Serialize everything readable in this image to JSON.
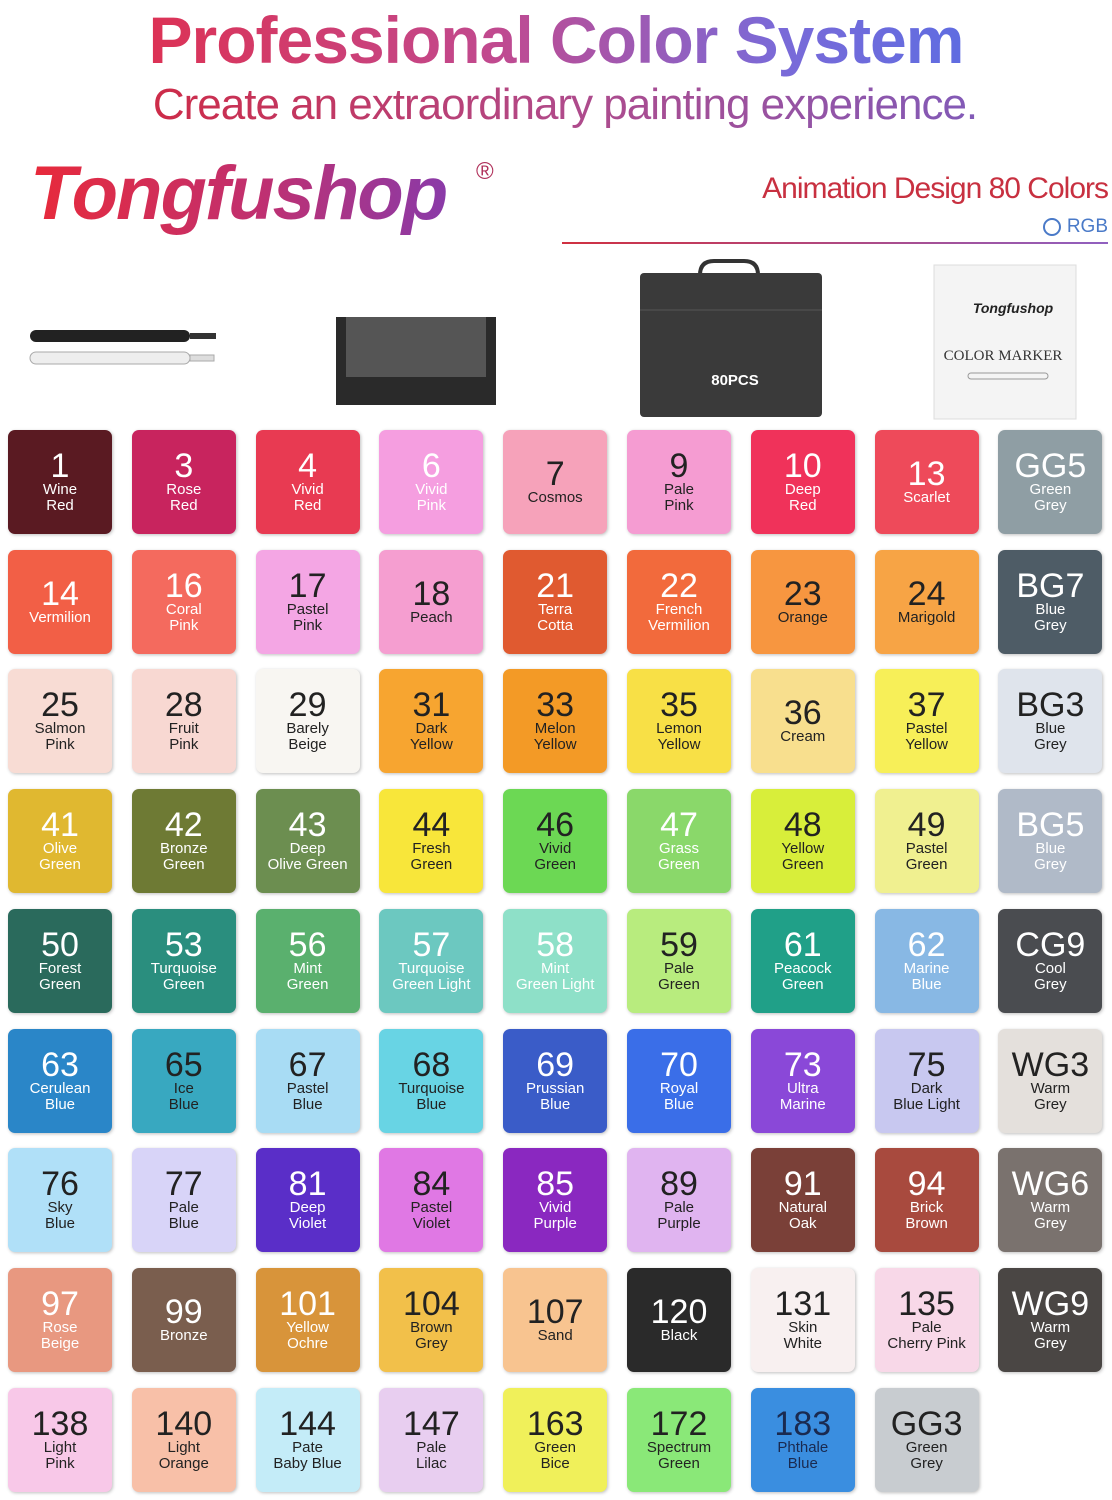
{
  "header": {
    "title": "Professional Color System",
    "subtitle": "Create an extraordinary painting experience.",
    "brand": "Tongfushop",
    "registered": "®",
    "edition": "Animation Design 80 Colors",
    "mode": "RGB"
  },
  "products": {
    "bag_label": "80PCS",
    "box_brand": "Tongfushop",
    "box_label": "COLOR MARKER"
  },
  "swatches": [
    {
      "code": "1",
      "name": [
        "Wine",
        "Red"
      ],
      "color": "#5a1a22",
      "text": "#ffffff"
    },
    {
      "code": "3",
      "name": [
        "Rose",
        "Red"
      ],
      "color": "#c8245e",
      "text": "#ffffff"
    },
    {
      "code": "4",
      "name": [
        "Vivid",
        "Red"
      ],
      "color": "#e83a52",
      "text": "#ffffff"
    },
    {
      "code": "6",
      "name": [
        "Vivid",
        "Pink"
      ],
      "color": "#f59ee0",
      "text": "#ffffff"
    },
    {
      "code": "7",
      "name": [
        "Cosmos"
      ],
      "color": "#f6a2ba",
      "text": "#222222"
    },
    {
      "code": "9",
      "name": [
        "Pale",
        "Pink"
      ],
      "color": "#f59cd2",
      "text": "#222222"
    },
    {
      "code": "10",
      "name": [
        "Deep",
        "Red"
      ],
      "color": "#f0325a",
      "text": "#ffffff"
    },
    {
      "code": "13",
      "name": [
        "Scarlet"
      ],
      "color": "#ee4a5a",
      "text": "#ffffff"
    },
    {
      "code": "GG5",
      "name": [
        "Green",
        "Grey"
      ],
      "color": "#8f9ea4",
      "text": "#ffffff"
    },
    {
      "code": "14",
      "name": [
        "Vermilion"
      ],
      "color": "#f25f46",
      "text": "#ffffff"
    },
    {
      "code": "16",
      "name": [
        "Coral",
        "Pink"
      ],
      "color": "#f46a5e",
      "text": "#ffffff"
    },
    {
      "code": "17",
      "name": [
        "Pastel",
        "Pink"
      ],
      "color": "#f4a6e4",
      "text": "#222222"
    },
    {
      "code": "18",
      "name": [
        "Peach"
      ],
      "color": "#f59ed0",
      "text": "#222222"
    },
    {
      "code": "21",
      "name": [
        "Terra",
        "Cotta"
      ],
      "color": "#e05a30",
      "text": "#ffffff"
    },
    {
      "code": "22",
      "name": [
        "French",
        "Vermilion"
      ],
      "color": "#f26a3c",
      "text": "#ffffff"
    },
    {
      "code": "23",
      "name": [
        "Orange"
      ],
      "color": "#f79640",
      "text": "#222222"
    },
    {
      "code": "24",
      "name": [
        "Marigold"
      ],
      "color": "#f7a445",
      "text": "#222222"
    },
    {
      "code": "BG7",
      "name": [
        "Blue",
        "Grey"
      ],
      "color": "#4e5c66",
      "text": "#ffffff"
    },
    {
      "code": "25",
      "name": [
        "Salmon",
        "Pink"
      ],
      "color": "#f8dcd4",
      "text": "#222222"
    },
    {
      "code": "28",
      "name": [
        "Fruit",
        "Pink"
      ],
      "color": "#f8d8d2",
      "text": "#222222"
    },
    {
      "code": "29",
      "name": [
        "Barely",
        "Beige"
      ],
      "color": "#f8f6f2",
      "text": "#222222"
    },
    {
      "code": "31",
      "name": [
        "Dark",
        "Yellow"
      ],
      "color": "#f7a530",
      "text": "#222222"
    },
    {
      "code": "33",
      "name": [
        "Melon",
        "Yellow"
      ],
      "color": "#f39a26",
      "text": "#222222"
    },
    {
      "code": "35",
      "name": [
        "Lemon",
        "Yellow"
      ],
      "color": "#f8e046",
      "text": "#222222"
    },
    {
      "code": "36",
      "name": [
        "Cream"
      ],
      "color": "#f8df8e",
      "text": "#222222"
    },
    {
      "code": "37",
      "name": [
        "Pastel",
        "Yellow"
      ],
      "color": "#f7ef58",
      "text": "#222222"
    },
    {
      "code": "BG3",
      "name": [
        "Blue",
        "Grey"
      ],
      "color": "#dfe4ec",
      "text": "#222222"
    },
    {
      "code": "41",
      "name": [
        "Olive",
        "Green"
      ],
      "color": "#e0b830",
      "text": "#ffffff"
    },
    {
      "code": "42",
      "name": [
        "Bronze",
        "Green"
      ],
      "color": "#6e7a34",
      "text": "#ffffff"
    },
    {
      "code": "43",
      "name": [
        "Deep",
        "Olive Green"
      ],
      "color": "#6c8e50",
      "text": "#ffffff"
    },
    {
      "code": "44",
      "name": [
        "Fresh",
        "Green"
      ],
      "color": "#f8e63a",
      "text": "#222222"
    },
    {
      "code": "46",
      "name": [
        "Vivid",
        "Green"
      ],
      "color": "#6cd854",
      "text": "#222222"
    },
    {
      "code": "47",
      "name": [
        "Grass",
        "Green"
      ],
      "color": "#8ad86a",
      "text": "#ffffff"
    },
    {
      "code": "48",
      "name": [
        "Yellow",
        "Green"
      ],
      "color": "#d8ee3a",
      "text": "#222222"
    },
    {
      "code": "49",
      "name": [
        "Pastel",
        "Green"
      ],
      "color": "#f0f090",
      "text": "#222222"
    },
    {
      "code": "BG5",
      "name": [
        "Blue",
        "Grey"
      ],
      "color": "#b0bac8",
      "text": "#ffffff"
    },
    {
      "code": "50",
      "name": [
        "Forest",
        "Green"
      ],
      "color": "#2a6a5c",
      "text": "#ffffff"
    },
    {
      "code": "53",
      "name": [
        "Turquoise",
        "Green"
      ],
      "color": "#2a8e7e",
      "text": "#ffffff"
    },
    {
      "code": "56",
      "name": [
        "Mint",
        "Green"
      ],
      "color": "#5ab06e",
      "text": "#ffffff"
    },
    {
      "code": "57",
      "name": [
        "Turquoise",
        "Green Light"
      ],
      "color": "#6cc8c0",
      "text": "#ffffff"
    },
    {
      "code": "58",
      "name": [
        "Mint",
        "Green Light"
      ],
      "color": "#8ee0c8",
      "text": "#ffffff"
    },
    {
      "code": "59",
      "name": [
        "Pale",
        "Green"
      ],
      "color": "#b8ec7e",
      "text": "#222222"
    },
    {
      "code": "61",
      "name": [
        "Peacock",
        "Green"
      ],
      "color": "#20a088",
      "text": "#ffffff"
    },
    {
      "code": "62",
      "name": [
        "Marine",
        "Blue"
      ],
      "color": "#88b8e4",
      "text": "#ffffff"
    },
    {
      "code": "CG9",
      "name": [
        "Cool",
        "Grey"
      ],
      "color": "#4a4c50",
      "text": "#ffffff"
    },
    {
      "code": "63",
      "name": [
        "Cerulean",
        "Blue"
      ],
      "color": "#2a86c8",
      "text": "#ffffff"
    },
    {
      "code": "65",
      "name": [
        "Ice",
        "Blue"
      ],
      "color": "#38a8c0",
      "text": "#222222"
    },
    {
      "code": "67",
      "name": [
        "Pastel",
        "Blue"
      ],
      "color": "#a8dcf4",
      "text": "#222222"
    },
    {
      "code": "68",
      "name": [
        "Turquoise",
        "Blue"
      ],
      "color": "#68d4e4",
      "text": "#222222"
    },
    {
      "code": "69",
      "name": [
        "Prussian",
        "Blue"
      ],
      "color": "#3a5cc8",
      "text": "#ffffff"
    },
    {
      "code": "70",
      "name": [
        "Royal",
        "Blue"
      ],
      "color": "#3a6ee8",
      "text": "#ffffff"
    },
    {
      "code": "73",
      "name": [
        "Ultra",
        "Marine"
      ],
      "color": "#8a48d8",
      "text": "#ffffff"
    },
    {
      "code": "75",
      "name": [
        "Dark",
        "Blue Light"
      ],
      "color": "#c8c8f0",
      "text": "#222222"
    },
    {
      "code": "WG3",
      "name": [
        "Warm",
        "Grey"
      ],
      "color": "#e4e0dc",
      "text": "#222222"
    },
    {
      "code": "76",
      "name": [
        "Sky",
        "Blue"
      ],
      "color": "#b0e0f8",
      "text": "#222222"
    },
    {
      "code": "77",
      "name": [
        "Pale",
        "Blue"
      ],
      "color": "#d8d4f8",
      "text": "#222222"
    },
    {
      "code": "81",
      "name": [
        "Deep",
        "Violet"
      ],
      "color": "#5a2ec8",
      "text": "#ffffff"
    },
    {
      "code": "84",
      "name": [
        "Pastel",
        "Violet"
      ],
      "color": "#e078e4",
      "text": "#222222"
    },
    {
      "code": "85",
      "name": [
        "Vivid",
        "Purple"
      ],
      "color": "#8a28c0",
      "text": "#ffffff"
    },
    {
      "code": "89",
      "name": [
        "Pale",
        "Purple"
      ],
      "color": "#e0b4f0",
      "text": "#222222"
    },
    {
      "code": "91",
      "name": [
        "Natural",
        "Oak"
      ],
      "color": "#7a4038",
      "text": "#ffffff"
    },
    {
      "code": "94",
      "name": [
        "Brick",
        "Brown"
      ],
      "color": "#a84a3e",
      "text": "#ffffff"
    },
    {
      "code": "WG6",
      "name": [
        "Warm",
        "Grey"
      ],
      "color": "#7a726e",
      "text": "#ffffff"
    },
    {
      "code": "97",
      "name": [
        "Rose",
        "Beige"
      ],
      "color": "#e89880",
      "text": "#ffffff"
    },
    {
      "code": "99",
      "name": [
        "Bronze"
      ],
      "color": "#7a5e4e",
      "text": "#ffffff"
    },
    {
      "code": "101",
      "name": [
        "Yellow",
        "Ochre"
      ],
      "color": "#d8943a",
      "text": "#ffffff"
    },
    {
      "code": "104",
      "name": [
        "Brown",
        "Grey"
      ],
      "color": "#f2c04a",
      "text": "#222222"
    },
    {
      "code": "107",
      "name": [
        "Sand"
      ],
      "color": "#f8c490",
      "text": "#222222"
    },
    {
      "code": "120",
      "name": [
        "Black"
      ],
      "color": "#2a2a2a",
      "text": "#ffffff"
    },
    {
      "code": "131",
      "name": [
        "Skin",
        "White"
      ],
      "color": "#f8f0f0",
      "text": "#222222"
    },
    {
      "code": "135",
      "name": [
        "Pale",
        "Cherry Pink"
      ],
      "color": "#f8d8e8",
      "text": "#222222"
    },
    {
      "code": "WG9",
      "name": [
        "Warm",
        "Grey"
      ],
      "color": "#4a4644",
      "text": "#ffffff"
    },
    {
      "code": "138",
      "name": [
        "Light",
        "Pink"
      ],
      "color": "#f8c8e8",
      "text": "#222222"
    },
    {
      "code": "140",
      "name": [
        "Light",
        "Orange"
      ],
      "color": "#f8c0a8",
      "text": "#222222"
    },
    {
      "code": "144",
      "name": [
        "Pate",
        "Baby Blue"
      ],
      "color": "#c4ecf8",
      "text": "#222222"
    },
    {
      "code": "147",
      "name": [
        "Pale",
        "Lilac"
      ],
      "color": "#e8cef0",
      "text": "#222222"
    },
    {
      "code": "163",
      "name": [
        "Green",
        "Bice"
      ],
      "color": "#f0f05a",
      "text": "#222222"
    },
    {
      "code": "172",
      "name": [
        "Spectrum",
        "Green"
      ],
      "color": "#8ae878",
      "text": "#222222"
    },
    {
      "code": "183",
      "name": [
        "Phthale",
        "Blue"
      ],
      "color": "#3a8ee0",
      "text": "#1a2a50"
    },
    {
      "code": "GG3",
      "name": [
        "Green",
        "Grey"
      ],
      "color": "#c8ccd0",
      "text": "#222222"
    }
  ]
}
